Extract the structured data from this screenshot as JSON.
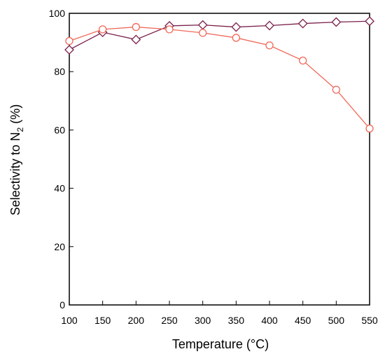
{
  "chart_data": {
    "type": "line",
    "title": "",
    "xlabel": "Temperature (°C)",
    "ylabel": "Selectivity to N",
    "ylabel_subscript": "2",
    "ylabel_suffix": " (%)",
    "xlim": [
      100,
      550
    ],
    "ylim": [
      0,
      100
    ],
    "xticks": [
      100,
      150,
      200,
      250,
      300,
      350,
      400,
      450,
      500,
      550
    ],
    "yticks": [
      0,
      20,
      40,
      60,
      80,
      100
    ],
    "grid": false,
    "legend": "none",
    "series": [
      {
        "marker": "diamond",
        "color": "#7a1f4a",
        "x": [
          100,
          150,
          200,
          250,
          300,
          350,
          400,
          450,
          500,
          550
        ],
        "y": [
          87.5,
          93.5,
          91.0,
          95.7,
          96.0,
          95.3,
          95.8,
          96.5,
          97.0,
          97.3
        ]
      },
      {
        "marker": "circle",
        "color": "#f0695a",
        "x": [
          100,
          150,
          200,
          250,
          300,
          350,
          400,
          450,
          500,
          550
        ],
        "y": [
          90.5,
          94.5,
          95.3,
          94.5,
          93.3,
          91.6,
          89.0,
          83.8,
          73.8,
          60.5
        ]
      }
    ]
  }
}
